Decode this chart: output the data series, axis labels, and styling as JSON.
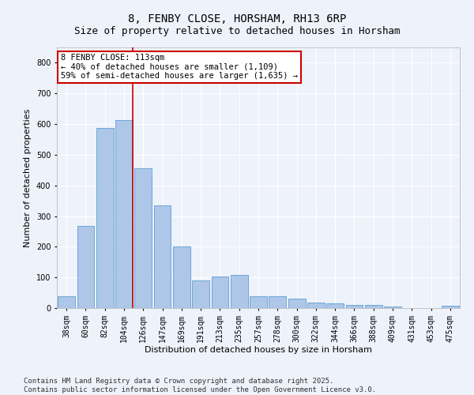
{
  "title": "8, FENBY CLOSE, HORSHAM, RH13 6RP",
  "subtitle": "Size of property relative to detached houses in Horsham",
  "xlabel": "Distribution of detached houses by size in Horsham",
  "ylabel": "Number of detached properties",
  "categories": [
    "38sqm",
    "60sqm",
    "82sqm",
    "104sqm",
    "126sqm",
    "147sqm",
    "169sqm",
    "191sqm",
    "213sqm",
    "235sqm",
    "257sqm",
    "278sqm",
    "300sqm",
    "322sqm",
    "344sqm",
    "366sqm",
    "388sqm",
    "409sqm",
    "431sqm",
    "453sqm",
    "475sqm"
  ],
  "values": [
    38,
    268,
    588,
    612,
    456,
    335,
    201,
    91,
    102,
    107,
    38,
    38,
    32,
    18,
    16,
    11,
    10,
    5,
    0,
    0,
    7
  ],
  "bar_color": "#aec6e8",
  "bar_edge_color": "#5a9fd4",
  "background_color": "#eef2fa",
  "grid_color": "#ffffff",
  "annotation_text": "8 FENBY CLOSE: 113sqm\n← 40% of detached houses are smaller (1,109)\n59% of semi-detached houses are larger (1,635) →",
  "annotation_box_color": "#ffffff",
  "annotation_box_edge": "#cc0000",
  "vline_x_index": 3,
  "vline_color": "#cc0000",
  "ylim": [
    0,
    850
  ],
  "yticks": [
    0,
    100,
    200,
    300,
    400,
    500,
    600,
    700,
    800
  ],
  "title_fontsize": 10,
  "subtitle_fontsize": 9,
  "label_fontsize": 8,
  "tick_fontsize": 7,
  "annot_fontsize": 7.5,
  "footer": "Contains HM Land Registry data © Crown copyright and database right 2025.\nContains public sector information licensed under the Open Government Licence v3.0.",
  "footer_fontsize": 6.5
}
